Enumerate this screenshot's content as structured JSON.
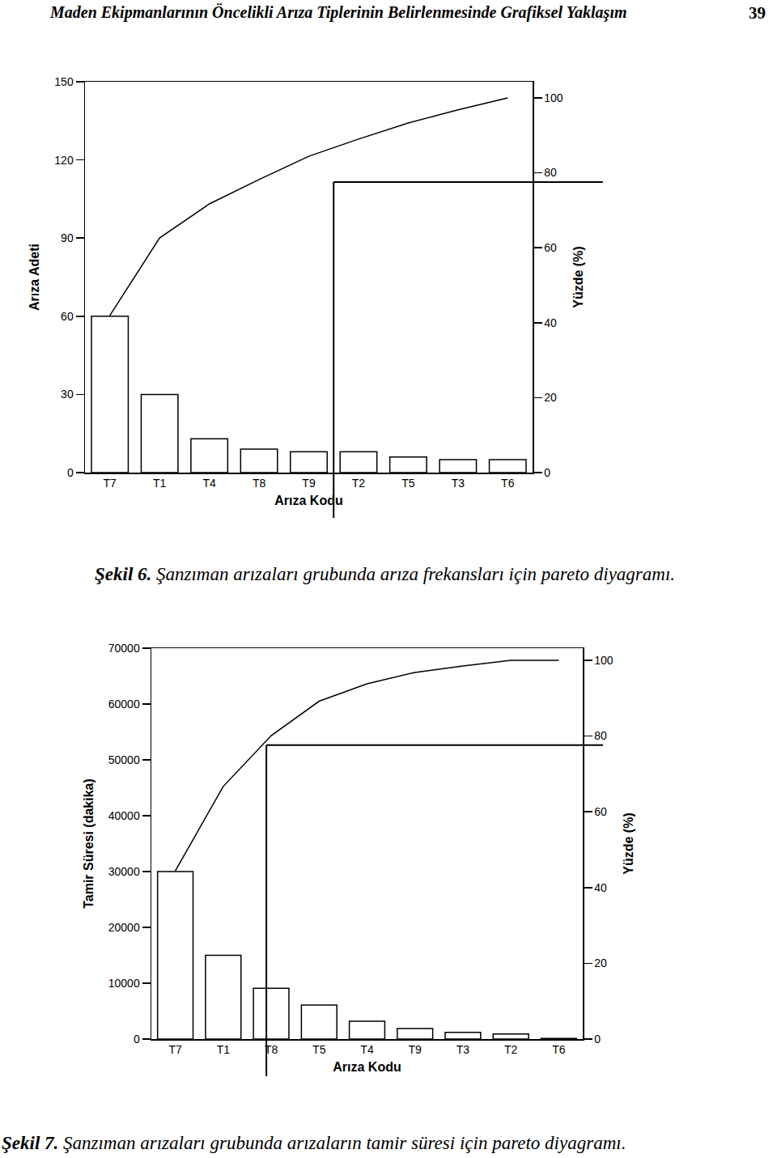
{
  "header": {
    "title": "Maden Ekipmanlarının Öncelikli Arıza Tiplerinin Belirlenmesinde Grafiksel Yaklaşım",
    "page": 39
  },
  "chart_data": [
    {
      "type": "bar",
      "caption": {
        "label": "Şekil 6.",
        "text": "Şanzıman arızaları grubunda arıza frekansları için pareto diyagramı."
      },
      "x_label": "Arıza Kodu",
      "y_label": "Arıza Adeti",
      "y2_label": "Yüzde (%)",
      "categories": [
        "T7",
        "T1",
        "T4",
        "T8",
        "T9",
        "T2",
        "T5",
        "T3",
        "T6"
      ],
      "series": [
        {
          "type": "bar",
          "color": "#ffffff",
          "values": [
            60,
            30,
            13,
            9,
            8,
            8,
            6,
            5,
            5
          ]
        },
        {
          "type": "line",
          "axis": "y2",
          "color": "#000000",
          "values": [
            41.9,
            62.6,
            71.7,
            78.2,
            84.4,
            89,
            93.3,
            96.8,
            100
          ]
        }
      ],
      "ylim": [
        0,
        150
      ],
      "yticks": [
        0,
        30,
        60,
        90,
        120,
        150
      ],
      "y2lim": [
        0,
        104.3
      ],
      "y2ticks": [
        0,
        20,
        40,
        60,
        80,
        100
      ],
      "grid": false,
      "cutoff": {
        "x": 4.5,
        "y2": 77.5
      }
    },
    {
      "type": "bar",
      "caption": {
        "label": "Şekil 7.",
        "text": "Şanzıman arızaları grubunda arızaların tamir süresi için pareto diyagramı."
      },
      "x_label": "Arıza Kodu",
      "y_label": "Tamir Süresi (dakika)",
      "y2_label": "Yüzde (%)",
      "categories": [
        "T7",
        "T1",
        "T8",
        "T5",
        "T4",
        "T9",
        "T3",
        "T2",
        "T6"
      ],
      "series": [
        {
          "type": "bar",
          "color": "#ffffff",
          "values": [
            30000,
            15000,
            9100,
            6100,
            3200,
            1900,
            1200,
            900,
            100
          ]
        },
        {
          "type": "line",
          "axis": "y2",
          "color": "#000000",
          "values": [
            44.4,
            66.7,
            80.1,
            89.2,
            93.8,
            96.8,
            98.5,
            100,
            100
          ]
        }
      ],
      "ylim": [
        0,
        70000
      ],
      "yticks": [
        0,
        10000,
        20000,
        30000,
        40000,
        50000,
        60000,
        70000
      ],
      "y2lim": [
        0,
        103.2
      ],
      "y2ticks": [
        0,
        20,
        40,
        60,
        80,
        100
      ],
      "grid": false,
      "cutoff": {
        "x": 1.9,
        "y2": 77.6
      }
    }
  ]
}
